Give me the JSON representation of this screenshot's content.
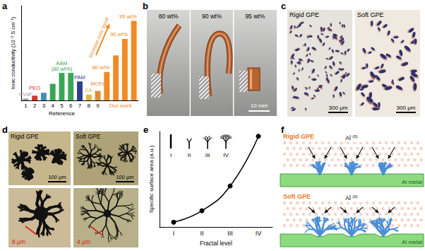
{
  "chart_data": [
    {
      "panel": "a",
      "type": "bar",
      "xlabel": "Reference",
      "ylabel": "Ionic conductivity (10⁻² S cm⁻¹)",
      "categories": [
        "1",
        "2",
        "3",
        "4",
        "5",
        "6",
        "7",
        "8",
        "9",
        null,
        null,
        null,
        null
      ],
      "values": [
        0.04,
        0.1,
        0.16,
        0.35,
        0.58,
        0.58,
        0.4,
        0.12,
        0.2,
        0.6,
        0.95,
        1.3,
        1.68
      ],
      "colors": [
        "#a0a0a0",
        "#d9342b",
        "#3f8fb5",
        "#3aa655",
        "#3aa655",
        "#3aa655",
        "#2e3d8f",
        "#e2b33c",
        "#e58a2e",
        "#f08a24",
        "#f08a24",
        "#f08a24",
        "#f08a24"
      ],
      "ylim": [
        0,
        2
      ],
      "tick_labels": "x",
      "group_label": {
        "text": "Our work",
        "categories": [
          9,
          12
        ]
      },
      "annotations": [
        {
          "text": "PVdF",
          "categories": [
            0,
            0
          ]
        },
        {
          "text": "PEO",
          "categories": [
            1,
            1
          ]
        },
        {
          "text": "AAM\n(80 wt%)",
          "categories": [
            3,
            5
          ]
        },
        {
          "text": "PAM",
          "categories": [
            6,
            6
          ]
        },
        {
          "text": "EA",
          "categories": [
            7,
            7
          ]
        },
        {
          "text": "MOFs",
          "categories": [
            8,
            8
          ]
        },
        {
          "text": "80 wt%",
          "categories": [
            9,
            9
          ]
        },
        {
          "text": "90 wt%",
          "categories": [
            11,
            11
          ]
        },
        {
          "text": "95 wt%",
          "categories": [
            12,
            12
          ]
        }
      ],
      "arrow": {
        "text": "Increase ionic liquid",
        "categories": [
          9,
          12
        ]
      }
    },
    {
      "panel": "e",
      "type": "line",
      "xlabel": "Fractal level",
      "ylabel": "Specific surface area (a.u.)",
      "categories": [
        "I",
        "II",
        "III",
        "IV"
      ],
      "values": [
        0.05,
        0.17,
        0.43,
        0.95
      ],
      "color": "#000000",
      "marker": "circle",
      "line_style": "solid",
      "ylim": [
        0,
        1
      ],
      "tick_labels": "x"
    }
  ],
  "figure_panels": [
    {
      "panel": "b",
      "labels": [
        "80 wt%",
        "90 wt%",
        "95 wt%"
      ],
      "scale_bar": "10 mm"
    },
    {
      "panel": "c",
      "images": [
        {
          "label": "Rigid GPE",
          "scale_bar": "300 μm"
        },
        {
          "label": "Soft GPE",
          "scale_bar": "300 μm"
        }
      ]
    },
    {
      "panel": "d",
      "images": [
        {
          "label": "Rigid GPE",
          "scale_bar": "100 μm"
        },
        {
          "label": "Soft GPE",
          "scale_bar": "100 μm"
        }
      ],
      "zoom_widths": [
        "8 μm",
        "4 μm"
      ]
    },
    {
      "panel": "f",
      "rows": [
        {
          "label": "Rigid GPE",
          "ion": "Al",
          "ion_state": "(0)",
          "substrate": "Al metal"
        },
        {
          "label": "Soft GPE",
          "ion": "Al",
          "ion_state": "(0)",
          "substrate": "Al metal"
        }
      ]
    }
  ]
}
